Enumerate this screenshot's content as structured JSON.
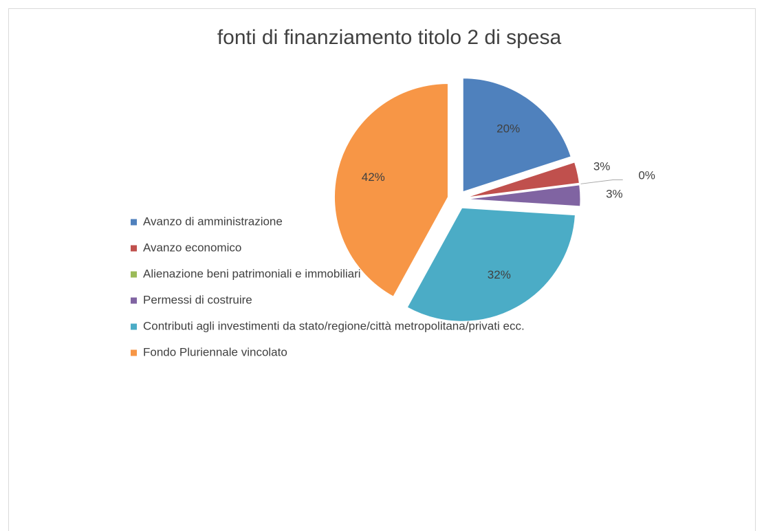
{
  "chart_data": {
    "type": "pie",
    "title": "fonti di finanziamento titolo 2 di spesa",
    "categories": [
      "Avanzo di amministrazione",
      "Avanzo economico",
      "Alienazione beni patrimoniali e immobiliari",
      "Permessi di costruire",
      "Contributi agli investimenti da stato/regione/città metropolitana/privati ecc.",
      "Fondo Pluriennale vincolato"
    ],
    "values": [
      20,
      3,
      0,
      3,
      32,
      42
    ],
    "value_labels": [
      "20%",
      "3%",
      "0%",
      "3%",
      "32%",
      "42%"
    ],
    "colors": [
      "#4f81bd",
      "#c0504d",
      "#9bbb59",
      "#8064a2",
      "#4bacc6",
      "#f79646"
    ],
    "legend": "bottom"
  }
}
